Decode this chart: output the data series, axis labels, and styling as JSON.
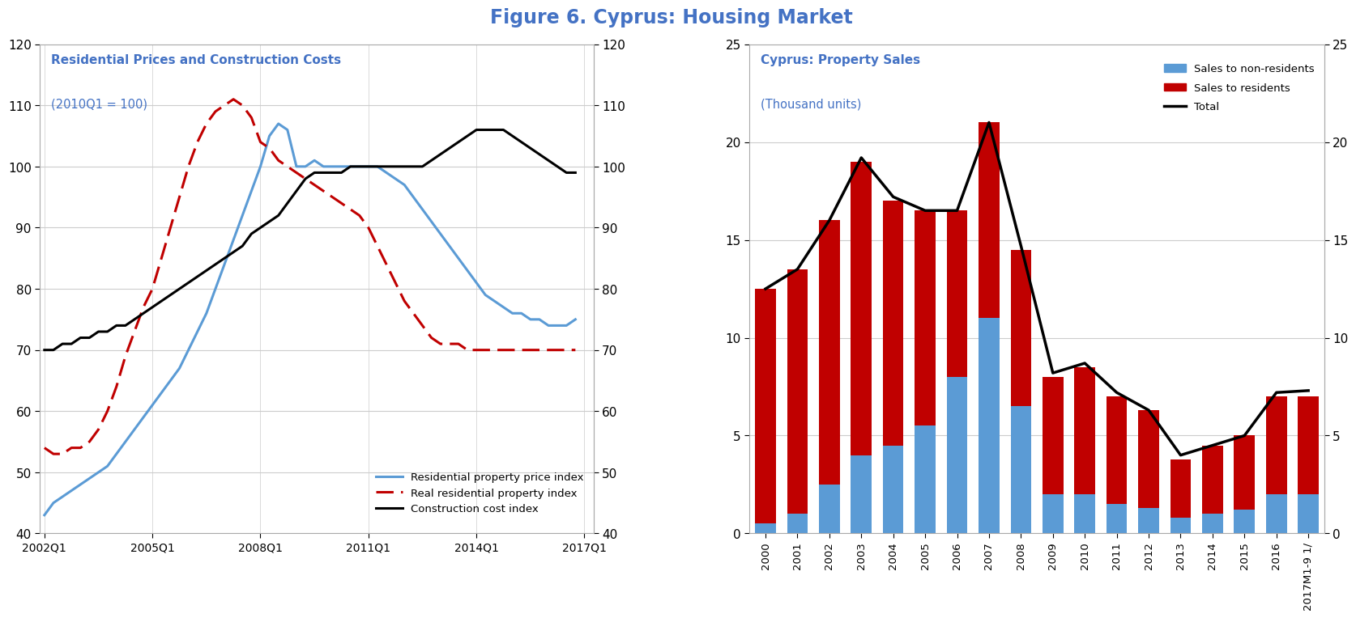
{
  "title": "Figure 6. Cyprus: Housing Market",
  "title_color": "#4472C4",
  "title_fontsize": 17,
  "left_chart": {
    "box_title": "Residential Prices and Construction Costs",
    "box_subtitle": "(2010Q1 = 100)",
    "ylim": [
      40,
      120
    ],
    "yticks": [
      40,
      50,
      60,
      70,
      80,
      90,
      100,
      110,
      120
    ],
    "xtick_labels": [
      "2002Q1",
      "2005Q1",
      "2008Q1",
      "2011Q1",
      "2014Q1",
      "2017Q1"
    ],
    "xtick_positions": [
      0,
      12,
      24,
      36,
      48,
      60
    ],
    "xlim": [
      -0.5,
      61
    ],
    "residential_price": [
      43,
      45,
      46,
      47,
      48,
      49,
      50,
      51,
      53,
      55,
      57,
      59,
      61,
      63,
      65,
      67,
      70,
      73,
      76,
      80,
      84,
      88,
      92,
      96,
      100,
      105,
      107,
      106,
      100,
      100,
      101,
      100,
      100,
      100,
      100,
      100,
      100,
      100,
      99,
      98,
      97,
      95,
      93,
      91,
      89,
      87,
      85,
      83,
      81,
      79,
      78,
      77,
      76,
      76,
      75,
      75,
      74,
      74,
      74,
      75
    ],
    "real_residential": [
      54,
      53,
      53,
      54,
      54,
      55,
      57,
      60,
      64,
      69,
      73,
      77,
      80,
      85,
      90,
      95,
      100,
      104,
      107,
      109,
      110,
      111,
      110,
      108,
      104,
      103,
      101,
      100,
      99,
      98,
      97,
      96,
      95,
      94,
      93,
      92,
      90,
      87,
      84,
      81,
      78,
      76,
      74,
      72,
      71,
      71,
      71,
      70,
      70,
      70,
      70,
      70,
      70,
      70,
      70,
      70,
      70,
      70,
      70,
      70
    ],
    "construction_cost": [
      70,
      70,
      71,
      71,
      72,
      72,
      73,
      73,
      74,
      74,
      75,
      76,
      77,
      78,
      79,
      80,
      81,
      82,
      83,
      84,
      85,
      86,
      87,
      89,
      90,
      91,
      92,
      94,
      96,
      98,
      99,
      99,
      99,
      99,
      100,
      100,
      100,
      100,
      100,
      100,
      100,
      100,
      100,
      101,
      102,
      103,
      104,
      105,
      106,
      106,
      106,
      106,
      105,
      104,
      103,
      102,
      101,
      100,
      99,
      99
    ],
    "n_quarters": 60,
    "residential_color": "#5B9BD5",
    "real_residential_color": "#C00000",
    "construction_color": "#000000"
  },
  "right_chart": {
    "box_title": "Cyprus: Property Sales",
    "box_subtitle": "(Thousand units)",
    "years": [
      "2000",
      "2001",
      "2002",
      "2003",
      "2004",
      "2005",
      "2006",
      "2007",
      "2008",
      "2009",
      "2010",
      "2011",
      "2012",
      "2013",
      "2014",
      "2015",
      "2016",
      "2017M1-9 1/"
    ],
    "sales_nonresidents": [
      0.5,
      1.0,
      2.5,
      4.0,
      4.5,
      5.5,
      8.0,
      11.0,
      6.5,
      2.0,
      2.0,
      1.5,
      1.3,
      0.8,
      1.0,
      1.2,
      2.0,
      2.0
    ],
    "sales_residents": [
      12.0,
      12.5,
      13.5,
      15.0,
      12.5,
      11.0,
      8.5,
      10.0,
      8.0,
      6.0,
      6.5,
      5.5,
      5.0,
      3.0,
      3.5,
      3.8,
      5.0,
      5.0
    ],
    "total": [
      12.5,
      13.5,
      16.0,
      19.2,
      17.2,
      16.5,
      16.5,
      21.0,
      14.7,
      8.2,
      8.7,
      7.2,
      6.3,
      4.0,
      4.5,
      5.0,
      7.2,
      7.3
    ],
    "ylim": [
      0,
      25
    ],
    "yticks": [
      0,
      5,
      10,
      15,
      20,
      25
    ],
    "residents_color": "#C00000",
    "nonresidents_color": "#5B9BD5",
    "total_color": "#000000"
  }
}
